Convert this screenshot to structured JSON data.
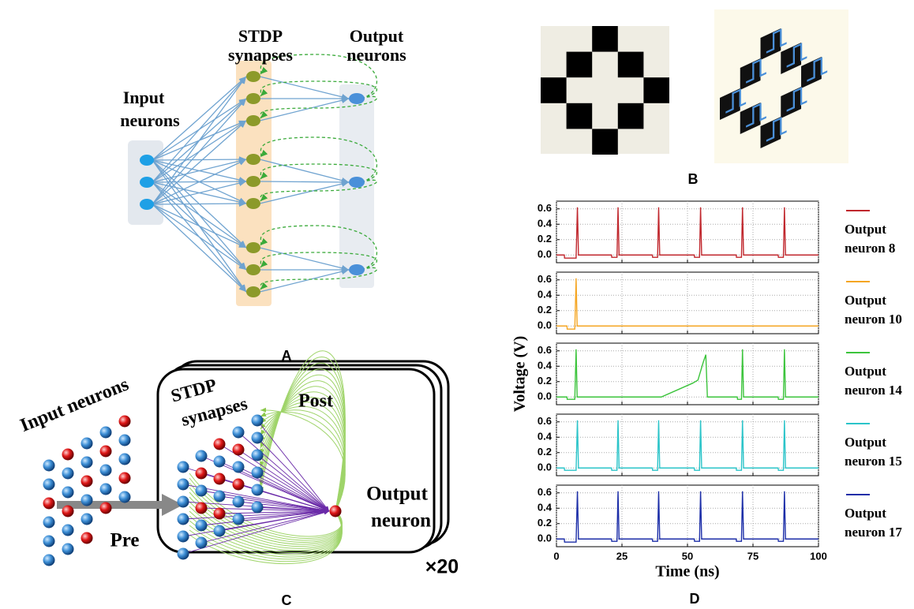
{
  "panel_labels": {
    "a": "A",
    "b": "B",
    "c": "C",
    "d": "D"
  },
  "panel_a": {
    "synapses_1": "STDP",
    "synapses_2": "synapses",
    "output_1": "Output",
    "output_2": "neurons",
    "input_1": "Input",
    "input_2": "neurons"
  },
  "panel_c": {
    "input": "Input neurons",
    "synapses_1": "STDP",
    "synapses_2": "synapses",
    "post": "Post",
    "output_1": "Output",
    "output_2": "neuron",
    "pre": "Pre",
    "copies": "×20"
  },
  "chart_data": [
    {
      "type": "line",
      "xlim": [
        0,
        100
      ],
      "xticks": [
        0,
        25,
        50,
        75,
        100
      ],
      "ylim": [
        -0.1,
        0.7
      ],
      "yticks": [
        {
          "value": 0,
          "label": "0.0"
        },
        0.2,
        0.4,
        0.6
      ],
      "grid": true,
      "x": [
        0,
        3,
        3.1,
        7.5,
        8,
        8.4,
        21,
        21.1,
        23.1,
        23.5,
        23.9,
        36.6,
        36.7,
        38.6,
        39,
        39.4,
        52.6,
        52.7,
        54.6,
        55,
        55.4,
        68.6,
        68.7,
        70.6,
        71,
        71.4,
        84.6,
        84.7,
        86.6,
        87,
        87.4,
        100
      ],
      "series": [
        {
          "name": "Output neuron 8",
          "color": "#c0272d",
          "values": [
            0,
            0,
            -0.04,
            -0.04,
            0.62,
            0,
            0,
            -0.03,
            -0.03,
            0.62,
            0,
            0,
            -0.03,
            -0.03,
            0.62,
            0,
            0,
            -0.03,
            -0.03,
            0.62,
            0,
            0,
            -0.03,
            -0.03,
            0.62,
            0,
            0,
            -0.03,
            -0.03,
            0.62,
            0,
            0
          ]
        }
      ]
    },
    {
      "type": "line",
      "xlim": [
        0,
        100
      ],
      "xticks": [
        0,
        25,
        50,
        75,
        100
      ],
      "ylim": [
        -0.1,
        0.7
      ],
      "yticks": [
        {
          "value": 0,
          "label": "0.0"
        },
        0.2,
        0.4,
        0.6
      ],
      "grid": true,
      "x": [
        0,
        4,
        4.1,
        7,
        7.5,
        7.9,
        100
      ],
      "series": [
        {
          "name": "Output neuron 10",
          "color": "#f5a623",
          "values": [
            0,
            0,
            -0.04,
            -0.04,
            0.62,
            0,
            0
          ]
        }
      ]
    },
    {
      "type": "line",
      "xlim": [
        0,
        100
      ],
      "xticks": [
        0,
        25,
        50,
        75,
        100
      ],
      "ylim": [
        -0.1,
        0.7
      ],
      "yticks": [
        {
          "value": 0,
          "label": "0.0"
        },
        0.2,
        0.4,
        0.6
      ],
      "grid": true,
      "ylabel": "Voltage (V)",
      "x": [
        0,
        4,
        4.1,
        7,
        7.5,
        7.9,
        40,
        52,
        54,
        56,
        57,
        57.6,
        69,
        69.1,
        70.6,
        71,
        71.4,
        84.6,
        84.7,
        86.6,
        87,
        87.4,
        100
      ],
      "series": [
        {
          "name": "Output neuron 14",
          "color": "#3cc43c",
          "values": [
            0,
            0,
            -0.03,
            -0.03,
            0.62,
            0,
            0,
            0.18,
            0.22,
            0.45,
            0.55,
            0,
            0,
            -0.03,
            -0.03,
            0.62,
            0,
            0,
            -0.03,
            -0.03,
            0.62,
            0,
            0
          ]
        }
      ]
    },
    {
      "type": "line",
      "xlim": [
        0,
        100
      ],
      "xticks": [
        0,
        25,
        50,
        75,
        100
      ],
      "ylim": [
        -0.1,
        0.7
      ],
      "yticks": [
        {
          "value": 0,
          "label": "0.0"
        },
        0.2,
        0.4,
        0.6
      ],
      "grid": true,
      "x": [
        0,
        3,
        3.1,
        7.5,
        8,
        8.4,
        21,
        21.1,
        23.1,
        23.5,
        23.9,
        36.6,
        36.7,
        38.6,
        39,
        39.4,
        52.6,
        52.7,
        54.6,
        55,
        55.4,
        68.6,
        68.7,
        70.6,
        71,
        71.4,
        84.6,
        84.7,
        86.6,
        87,
        87.4,
        100
      ],
      "series": [
        {
          "name": "Output neuron 15",
          "color": "#2bc4c9",
          "values": [
            0,
            0,
            -0.03,
            -0.03,
            0.62,
            0,
            0,
            -0.03,
            -0.03,
            0.62,
            0,
            0,
            -0.03,
            -0.03,
            0.62,
            0,
            0,
            -0.03,
            -0.03,
            0.62,
            0,
            0,
            -0.03,
            -0.03,
            0.62,
            0,
            0,
            -0.03,
            -0.03,
            0.62,
            0,
            0
          ]
        }
      ]
    },
    {
      "type": "line",
      "xlim": [
        0,
        100
      ],
      "xticks": [
        0,
        25,
        50,
        75,
        100
      ],
      "ylim": [
        -0.1,
        0.7
      ],
      "yticks": [
        {
          "value": 0,
          "label": "0.0"
        },
        0.2,
        0.4,
        0.6
      ],
      "grid": true,
      "xlabel": "Time (ns)",
      "x": [
        0,
        3,
        3.1,
        7.5,
        8,
        8.4,
        21,
        21.1,
        23.1,
        23.5,
        23.9,
        36.6,
        36.7,
        38.6,
        39,
        39.4,
        52.6,
        52.7,
        54.6,
        55,
        55.4,
        68.6,
        68.7,
        70.6,
        71,
        71.4,
        84.6,
        84.7,
        86.6,
        87,
        87.4,
        100
      ],
      "series": [
        {
          "name": "Output neuron 17",
          "color": "#1c2ea8",
          "values": [
            0,
            0,
            -0.04,
            -0.04,
            0.62,
            0,
            0,
            -0.03,
            -0.03,
            0.62,
            0,
            0,
            -0.03,
            -0.03,
            0.62,
            0,
            0,
            -0.03,
            -0.03,
            0.62,
            0,
            0,
            -0.03,
            -0.03,
            0.62,
            0,
            0,
            -0.03,
            -0.03,
            0.62,
            0,
            0
          ]
        }
      ]
    }
  ]
}
